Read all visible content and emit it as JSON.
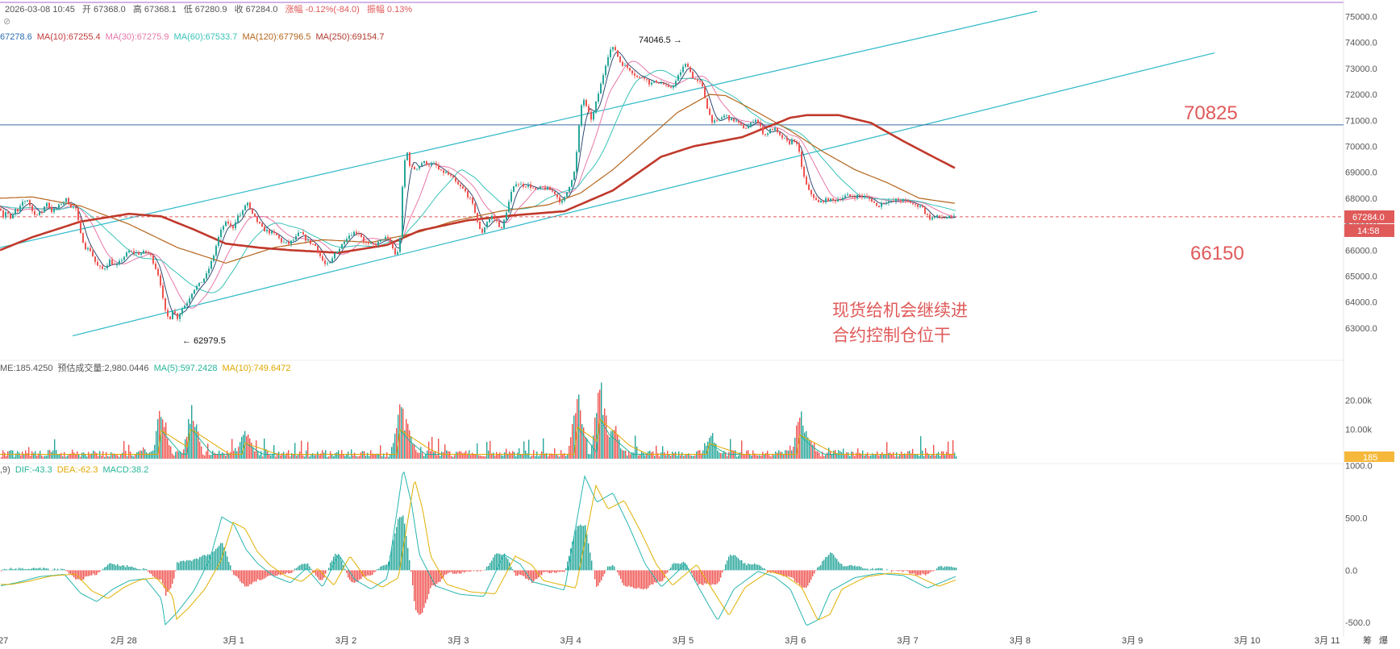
{
  "header": {
    "ohlc_line": [
      "2026-03-08 10:45",
      "开 67368.0",
      "高 67368.1",
      "低 67280.9",
      "收 67284.0",
      "涨幅 -0.12%(-84.0)",
      "振幅 0.13%"
    ],
    "ma_line": [
      {
        "text": "67278.6",
        "color": "#2a6db0"
      },
      {
        "text": "MA(10):67255.4",
        "color": "#c23a3a"
      },
      {
        "text": "MA(30):67275.9",
        "color": "#e678a8"
      },
      {
        "text": "MA(60):67533.7",
        "color": "#38c2b8"
      },
      {
        "text": "MA(120):67796.5",
        "color": "#b5651d"
      },
      {
        "text": "MA(250):69154.7",
        "color": "#b03a2e"
      }
    ],
    "vol_line": [
      {
        "text": "ME:185.4250",
        "color": "#555555"
      },
      {
        "text": "预估成交量:2,980.0446",
        "color": "#555555"
      },
      {
        "text": "MA(5):597.2428",
        "color": "#26b59a"
      },
      {
        "text": "MA(10):749.6472",
        "color": "#e0a800"
      }
    ],
    "macd_line": [
      {
        "text": ",9)",
        "color": "#555555"
      },
      {
        "text": "DIF:-43.3",
        "color": "#26b59a"
      },
      {
        "text": "DEA:-62.3",
        "color": "#e0a800"
      },
      {
        "text": "MACD:38.2",
        "color": "#26b59a"
      }
    ]
  },
  "annotations": {
    "high_marker": "74046.5 →",
    "low_marker": "← 62979.5",
    "resistance_label": "70825",
    "support_label": "66150",
    "note_line1": "现货给机会继续进",
    "note_line2": "合约控制仓位干"
  },
  "price_tag": {
    "price": "67284.0",
    "countdown": "14:58",
    "volume": "185"
  },
  "right_icons": [
    "筹",
    "爆"
  ],
  "chart_data": {
    "type": "candlestick",
    "price_axis": {
      "ticks": [
        "75000.0",
        "74000.0",
        "73000.0",
        "72000.0",
        "71000.0",
        "70000.0",
        "69000.0",
        "68000.0",
        "67000.0",
        "66000.0",
        "65000.0",
        "64000.0",
        "63000.0"
      ],
      "range": [
        62500,
        75200
      ]
    },
    "volume_axis": {
      "ticks": [
        "20.00k",
        "10.00k"
      ],
      "range": [
        0,
        30000
      ]
    },
    "macd_axis": {
      "ticks": [
        "1000.0",
        "500.0",
        "0.0",
        "-500.0"
      ],
      "range": [
        -560,
        1020
      ]
    },
    "x_labels": [
      "27",
      "2月 28",
      "3月 1",
      "3月 2",
      "3月 3",
      "3月 4",
      "3月 5",
      "3月 6",
      "3月 7",
      "3月 8",
      "3月 9",
      "3月 10",
      "3月 11"
    ],
    "price_anchors": [
      [
        0,
        67700
      ],
      [
        4,
        67300
      ],
      [
        8,
        67550
      ],
      [
        14,
        67100
      ],
      [
        18,
        67600
      ],
      [
        22,
        67450
      ],
      [
        28,
        67850
      ],
      [
        34,
        67950
      ],
      [
        40,
        67500
      ],
      [
        46,
        67350
      ],
      [
        52,
        67500
      ],
      [
        58,
        67850
      ],
      [
        64,
        67500
      ],
      [
        70,
        67600
      ],
      [
        76,
        67800
      ],
      [
        82,
        67950
      ],
      [
        88,
        67700
      ],
      [
        94,
        67600
      ],
      [
        100,
        66600
      ],
      [
        106,
        66100
      ],
      [
        112,
        66000
      ],
      [
        120,
        65400
      ],
      [
        128,
        65250
      ],
      [
        136,
        65600
      ],
      [
        144,
        65350
      ],
      [
        152,
        65700
      ],
      [
        160,
        65950
      ],
      [
        168,
        65900
      ],
      [
        174,
        65850
      ],
      [
        180,
        65950
      ],
      [
        186,
        65850
      ],
      [
        192,
        65400
      ],
      [
        198,
        64900
      ],
      [
        204,
        63700
      ],
      [
        210,
        63300
      ],
      [
        214,
        63700
      ],
      [
        220,
        63400
      ],
      [
        226,
        63750
      ],
      [
        232,
        64000
      ],
      [
        240,
        64500
      ],
      [
        248,
        64700
      ],
      [
        256,
        65050
      ],
      [
        264,
        65700
      ],
      [
        270,
        66400
      ],
      [
        276,
        66900
      ],
      [
        282,
        67100
      ],
      [
        288,
        66800
      ],
      [
        294,
        67300
      ],
      [
        300,
        67400
      ],
      [
        306,
        67900
      ],
      [
        312,
        67400
      ],
      [
        318,
        67150
      ],
      [
        326,
        66800
      ],
      [
        334,
        66700
      ],
      [
        342,
        66600
      ],
      [
        350,
        66300
      ],
      [
        358,
        66250
      ],
      [
        366,
        66450
      ],
      [
        372,
        66700
      ],
      [
        378,
        66450
      ],
      [
        384,
        66300
      ],
      [
        392,
        66150
      ],
      [
        398,
        65700
      ],
      [
        404,
        65400
      ],
      [
        410,
        65500
      ],
      [
        416,
        65950
      ],
      [
        422,
        66100
      ],
      [
        428,
        66450
      ],
      [
        434,
        66600
      ],
      [
        440,
        66700
      ],
      [
        446,
        66650
      ],
      [
        452,
        66300
      ],
      [
        458,
        66200
      ],
      [
        464,
        66200
      ],
      [
        470,
        66300
      ],
      [
        476,
        66500
      ],
      [
        482,
        66400
      ],
      [
        488,
        66000
      ],
      [
        492,
        65700
      ],
      [
        496,
        66500
      ],
      [
        500,
        69000
      ],
      [
        504,
        69900
      ],
      [
        508,
        69300
      ],
      [
        512,
        69100
      ],
      [
        518,
        69200
      ],
      [
        524,
        69400
      ],
      [
        532,
        69300
      ],
      [
        540,
        69300
      ],
      [
        546,
        69000
      ],
      [
        552,
        69000
      ],
      [
        560,
        68800
      ],
      [
        568,
        68500
      ],
      [
        576,
        68300
      ],
      [
        584,
        67900
      ],
      [
        590,
        67400
      ],
      [
        594,
        66800
      ],
      [
        598,
        66700
      ],
      [
        604,
        67100
      ],
      [
        610,
        67300
      ],
      [
        616,
        67100
      ],
      [
        622,
        66800
      ],
      [
        628,
        67500
      ],
      [
        634,
        68200
      ],
      [
        640,
        68600
      ],
      [
        648,
        68500
      ],
      [
        656,
        68500
      ],
      [
        664,
        68300
      ],
      [
        672,
        68400
      ],
      [
        680,
        68350
      ],
      [
        688,
        68200
      ],
      [
        696,
        67800
      ],
      [
        700,
        68000
      ],
      [
        706,
        68500
      ],
      [
        712,
        69000
      ],
      [
        716,
        70000
      ],
      [
        720,
        71500
      ],
      [
        724,
        71800
      ],
      [
        728,
        71400
      ],
      [
        734,
        71000
      ],
      [
        740,
        71800
      ],
      [
        746,
        72500
      ],
      [
        752,
        73300
      ],
      [
        756,
        73700
      ],
      [
        762,
        73800
      ],
      [
        768,
        73300
      ],
      [
        774,
        73100
      ],
      [
        780,
        73000
      ],
      [
        786,
        72800
      ],
      [
        792,
        72600
      ],
      [
        798,
        72700
      ],
      [
        806,
        72400
      ],
      [
        814,
        72500
      ],
      [
        822,
        72400
      ],
      [
        830,
        72200
      ],
      [
        838,
        72500
      ],
      [
        846,
        73000
      ],
      [
        852,
        73200
      ],
      [
        858,
        72700
      ],
      [
        864,
        72500
      ],
      [
        870,
        72400
      ],
      [
        876,
        71600
      ],
      [
        882,
        71000
      ],
      [
        888,
        70900
      ],
      [
        894,
        71100
      ],
      [
        900,
        71200
      ],
      [
        906,
        71000
      ],
      [
        912,
        71000
      ],
      [
        918,
        70800
      ],
      [
        924,
        70700
      ],
      [
        930,
        70800
      ],
      [
        936,
        71100
      ],
      [
        942,
        70800
      ],
      [
        948,
        70400
      ],
      [
        954,
        70600
      ],
      [
        960,
        70700
      ],
      [
        966,
        70400
      ],
      [
        972,
        70300
      ],
      [
        978,
        70100
      ],
      [
        984,
        70300
      ],
      [
        990,
        69900
      ],
      [
        996,
        68900
      ],
      [
        1002,
        68300
      ],
      [
        1008,
        68100
      ],
      [
        1014,
        67800
      ],
      [
        1020,
        67900
      ],
      [
        1026,
        67950
      ],
      [
        1034,
        67900
      ],
      [
        1042,
        68000
      ],
      [
        1050,
        68100
      ],
      [
        1058,
        68050
      ],
      [
        1066,
        68100
      ],
      [
        1074,
        68050
      ],
      [
        1082,
        67900
      ],
      [
        1088,
        67650
      ],
      [
        1094,
        67850
      ],
      [
        1100,
        67900
      ],
      [
        1106,
        67850
      ],
      [
        1112,
        67950
      ],
      [
        1120,
        67900
      ],
      [
        1128,
        67850
      ],
      [
        1136,
        67700
      ],
      [
        1142,
        67750
      ],
      [
        1148,
        67400
      ],
      [
        1154,
        67200
      ],
      [
        1160,
        67300
      ],
      [
        1166,
        67250
      ],
      [
        1172,
        67250
      ],
      [
        1178,
        67250
      ],
      [
        1185,
        67284
      ]
    ],
    "moving_averages": [
      {
        "name": "MA(120)",
        "color": "#b5651d",
        "points": [
          [
            0,
            68000
          ],
          [
            40,
            68050
          ],
          [
            100,
            67700
          ],
          [
            160,
            67000
          ],
          [
            220,
            66100
          ],
          [
            280,
            65500
          ],
          [
            340,
            66100
          ],
          [
            400,
            66400
          ],
          [
            460,
            66300
          ],
          [
            520,
            66700
          ],
          [
            560,
            67100
          ],
          [
            620,
            67500
          ],
          [
            680,
            67750
          ],
          [
            720,
            68200
          ],
          [
            760,
            69100
          ],
          [
            800,
            70200
          ],
          [
            840,
            71300
          ],
          [
            880,
            72000
          ],
          [
            900,
            71950
          ],
          [
            940,
            71300
          ],
          [
            980,
            70600
          ],
          [
            1020,
            69800
          ],
          [
            1060,
            69100
          ],
          [
            1100,
            68600
          ],
          [
            1140,
            68000
          ],
          [
            1185,
            67800
          ]
        ]
      },
      {
        "name": "MA(250)",
        "color": "#c0392b",
        "points": [
          [
            0,
            66000
          ],
          [
            40,
            66500
          ],
          [
            100,
            67100
          ],
          [
            160,
            67400
          ],
          [
            200,
            67300
          ],
          [
            240,
            66800
          ],
          [
            280,
            66250
          ],
          [
            320,
            66100
          ],
          [
            360,
            66000
          ],
          [
            420,
            65900
          ],
          [
            480,
            66200
          ],
          [
            520,
            66750
          ],
          [
            580,
            67150
          ],
          [
            640,
            67350
          ],
          [
            700,
            67500
          ],
          [
            760,
            68300
          ],
          [
            820,
            69600
          ],
          [
            860,
            70000
          ],
          [
            920,
            70350
          ],
          [
            980,
            71100
          ],
          [
            1000,
            71200
          ],
          [
            1040,
            71200
          ],
          [
            1080,
            70900
          ],
          [
            1120,
            70200
          ],
          [
            1160,
            69550
          ],
          [
            1185,
            69150
          ]
        ]
      }
    ],
    "trendlines": [
      {
        "name": "channel-upper",
        "color": "#2bb8c8",
        "from": [
          0,
          66100
        ],
        "to": [
          1286,
          75200
        ]
      },
      {
        "name": "channel-lower",
        "color": "#2bb8c8",
        "from": [
          90,
          62700
        ],
        "to": [
          1506,
          73600
        ]
      },
      {
        "name": "horizontal-70825",
        "color": "#3a6ea5",
        "price": 70825
      },
      {
        "name": "last-price",
        "color": "#e05a5a",
        "price": 67284
      }
    ],
    "volume_spikes": [
      [
        200,
        21500
      ],
      [
        238,
        22000
      ],
      [
        304,
        12000
      ],
      [
        496,
        22000
      ],
      [
        504,
        15500
      ],
      [
        716,
        24000
      ],
      [
        744,
        30000
      ],
      [
        760,
        16000
      ],
      [
        880,
        11500
      ],
      [
        992,
        18000
      ],
      [
        1000,
        12000
      ]
    ],
    "macd_anchors": [
      [
        0,
        -150
      ],
      [
        20,
        -120
      ],
      [
        50,
        -60
      ],
      [
        80,
        -40
      ],
      [
        100,
        -220
      ],
      [
        120,
        -300
      ],
      [
        140,
        -180
      ],
      [
        160,
        -100
      ],
      [
        180,
        -80
      ],
      [
        200,
        -270
      ],
      [
        205,
        -520
      ],
      [
        220,
        -400
      ],
      [
        240,
        -200
      ],
      [
        260,
        100
      ],
      [
        275,
        510
      ],
      [
        290,
        440
      ],
      [
        305,
        200
      ],
      [
        320,
        60
      ],
      [
        340,
        -60
      ],
      [
        360,
        -120
      ],
      [
        380,
        20
      ],
      [
        400,
        -160
      ],
      [
        420,
        150
      ],
      [
        440,
        -90
      ],
      [
        460,
        -180
      ],
      [
        480,
        -80
      ],
      [
        500,
        970
      ],
      [
        510,
        650
      ],
      [
        520,
        150
      ],
      [
        540,
        -150
      ],
      [
        570,
        -230
      ],
      [
        600,
        -250
      ],
      [
        625,
        150
      ],
      [
        645,
        60
      ],
      [
        660,
        -110
      ],
      [
        700,
        -190
      ],
      [
        725,
        900
      ],
      [
        740,
        650
      ],
      [
        760,
        740
      ],
      [
        780,
        420
      ],
      [
        800,
        60
      ],
      [
        820,
        -160
      ],
      [
        850,
        60
      ],
      [
        880,
        -350
      ],
      [
        890,
        -480
      ],
      [
        910,
        -180
      ],
      [
        940,
        -10
      ],
      [
        960,
        -60
      ],
      [
        980,
        -180
      ],
      [
        1000,
        -530
      ],
      [
        1015,
        -470
      ],
      [
        1030,
        -200
      ],
      [
        1060,
        -70
      ],
      [
        1090,
        -30
      ],
      [
        1120,
        -50
      ],
      [
        1150,
        -170
      ],
      [
        1185,
        -60
      ]
    ]
  }
}
